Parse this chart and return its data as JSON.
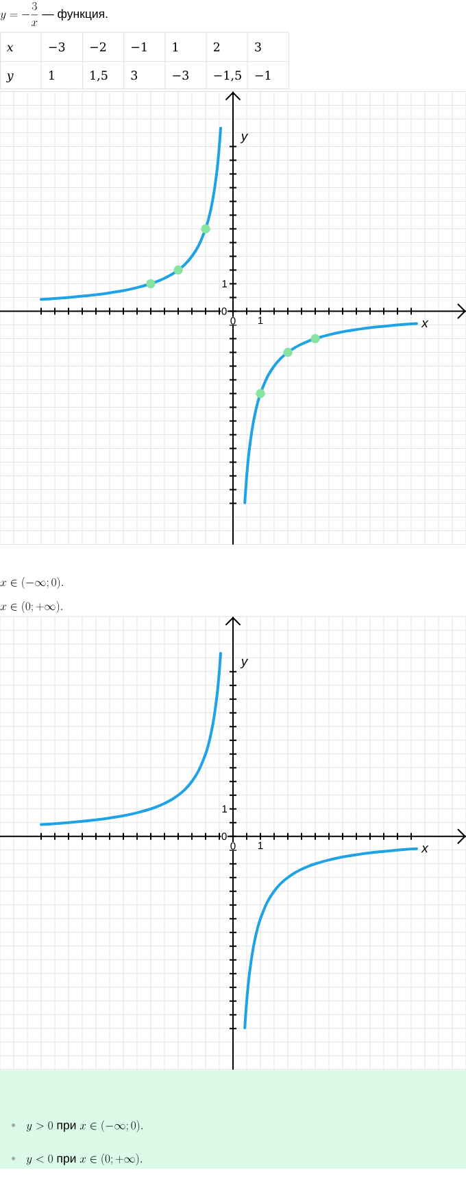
{
  "chart_data": [
    {
      "type": "other",
      "title": "y=-\\frac{3}{x}\\text{ — функция.}",
      "annotations": [
        "x",
        "−3",
        "−2",
        "−1",
        "1",
        "2",
        "3",
        "y",
        "1",
        "1,5",
        "3",
        "−3",
        "−1,5",
        "−1"
      ]
    },
    {
      "type": "line",
      "xlabel": "x",
      "ylabel": "y",
      "xlim": [
        -8.5,
        8.5
      ],
      "ylim": [
        -8.5,
        8
      ],
      "xticks": [
        {
          "value": -7,
          "label": null
        },
        {
          "value": -6.5,
          "label": null
        },
        {
          "value": -6,
          "label": null
        },
        {
          "value": -5.5,
          "label": null
        },
        {
          "value": -5,
          "label": null
        },
        {
          "value": -4.5,
          "label": null
        },
        {
          "value": -4,
          "label": null
        },
        {
          "value": -3.5,
          "label": null
        },
        {
          "value": -3,
          "label": null
        },
        {
          "value": -2.5,
          "label": null
        },
        {
          "value": -2,
          "label": null
        },
        {
          "value": -1.5,
          "label": null
        },
        {
          "value": -1,
          "label": null
        },
        {
          "value": -0.5,
          "label": null
        },
        0,
        {
          "value": 0.5,
          "label": null
        },
        1,
        {
          "value": 1.5,
          "label": null
        },
        {
          "value": 2,
          "label": null
        },
        {
          "value": 2.5,
          "label": null
        },
        {
          "value": 3,
          "label": null
        },
        {
          "value": 3.5,
          "label": null
        },
        {
          "value": 4,
          "label": null
        },
        {
          "value": 4.5,
          "label": null
        },
        {
          "value": 5,
          "label": null
        },
        {
          "value": 5.5,
          "label": null
        },
        {
          "value": 6,
          "label": null
        },
        {
          "value": 6.5,
          "label": null
        }
      ],
      "yticks": [
        {
          "value": -7,
          "label": null
        },
        {
          "value": -6.5,
          "label": null
        },
        {
          "value": -6,
          "label": null
        },
        {
          "value": -5.5,
          "label": null
        },
        {
          "value": -5,
          "label": null
        },
        {
          "value": -4.5,
          "label": null
        },
        {
          "value": -4,
          "label": null
        },
        {
          "value": -3.5,
          "label": null
        },
        {
          "value": -3,
          "label": null
        },
        {
          "value": -2.5,
          "label": null
        },
        {
          "value": -2,
          "label": null
        },
        {
          "value": -1.5,
          "label": null
        },
        {
          "value": -1,
          "label": null
        },
        {
          "value": -0.5,
          "label": null
        },
        0,
        {
          "value": 0.5,
          "label": null
        },
        1,
        {
          "value": 1.5,
          "label": null
        },
        {
          "value": 2,
          "label": null
        },
        {
          "value": 2.5,
          "label": null
        },
        {
          "value": 3,
          "label": null
        },
        {
          "value": 3.5,
          "label": null
        },
        {
          "value": 4,
          "label": null
        },
        {
          "value": 4.5,
          "label": null
        },
        {
          "value": 5,
          "label": null
        },
        {
          "value": 5.5,
          "label": null
        },
        {
          "value": 6,
          "label": null
        }
      ],
      "grid": true,
      "series": [
        {
          "color": "#1fa3e4",
          "x": [
            -7,
            -6.5,
            -6,
            -5.5,
            -5,
            -4.5,
            -4,
            -3.5,
            -3,
            -2.75,
            -2.5,
            -2.25,
            -2,
            -1.75,
            -1.5,
            -1.25,
            -1,
            -0.9,
            -0.8,
            -0.7,
            -0.6,
            -0.55,
            -0.5,
            -0.45
          ],
          "values": [
            0.43,
            0.46,
            0.5,
            0.55,
            0.6,
            0.67,
            0.75,
            0.86,
            1,
            1.09,
            1.2,
            1.33,
            1.5,
            1.71,
            2,
            2.4,
            3,
            3.33,
            3.75,
            4.29,
            5,
            5.45,
            6,
            6.67
          ]
        },
        {
          "color": "#1fa3e4",
          "x": [
            0.43,
            0.45,
            0.5,
            0.55,
            0.6,
            0.7,
            0.8,
            0.9,
            1,
            1.25,
            1.5,
            1.75,
            2,
            2.25,
            2.5,
            2.75,
            3,
            3.5,
            4,
            4.5,
            5,
            5.5,
            6,
            6.5,
            6.7
          ],
          "values": [
            -6.98,
            -6.67,
            -6,
            -5.45,
            -5,
            -4.29,
            -3.75,
            -3.33,
            -3,
            -2.4,
            -2,
            -1.71,
            -1.5,
            -1.33,
            -1.2,
            -1.09,
            -1,
            -0.86,
            -0.75,
            -0.67,
            -0.6,
            -0.55,
            -0.5,
            -0.46,
            -0.45
          ]
        },
        {
          "type": "scatter",
          "color": "#86e3a0",
          "marker": "circle",
          "x": [
            -3,
            -2,
            -1,
            1,
            2,
            3
          ],
          "values": [
            1,
            1.5,
            3,
            -3,
            -1.5,
            -1
          ]
        }
      ],
      "annotations": [
        "x\\in(-\\infty;0).",
        "x\\in(0;+\\infty)."
      ]
    },
    {
      "type": "line",
      "xlabel": "x",
      "ylabel": "y",
      "xlim": [
        -8.5,
        8.5
      ],
      "ylim": [
        -8.5,
        8
      ],
      "xticks": [
        {
          "value": -7,
          "label": null
        },
        {
          "value": -6.5,
          "label": null
        },
        {
          "value": -6,
          "label": null
        },
        {
          "value": -5.5,
          "label": null
        },
        {
          "value": -5,
          "label": null
        },
        {
          "value": -4.5,
          "label": null
        },
        {
          "value": -4,
          "label": null
        },
        {
          "value": -3.5,
          "label": null
        },
        {
          "value": -3,
          "label": null
        },
        {
          "value": -2.5,
          "label": null
        },
        {
          "value": -2,
          "label": null
        },
        {
          "value": -1.5,
          "label": null
        },
        {
          "value": -1,
          "label": null
        },
        {
          "value": -0.5,
          "label": null
        },
        0,
        {
          "value": 0.5,
          "label": null
        },
        1,
        {
          "value": 1.5,
          "label": null
        },
        {
          "value": 2,
          "label": null
        },
        {
          "value": 2.5,
          "label": null
        },
        {
          "value": 3,
          "label": null
        },
        {
          "value": 3.5,
          "label": null
        },
        {
          "value": 4,
          "label": null
        },
        {
          "value": 4.5,
          "label": null
        },
        {
          "value": 5,
          "label": null
        },
        {
          "value": 5.5,
          "label": null
        },
        {
          "value": 6,
          "label": null
        },
        {
          "value": 6.5,
          "label": null
        }
      ],
      "yticks": [
        {
          "value": -7,
          "label": null
        },
        {
          "value": -6.5,
          "label": null
        },
        {
          "value": -6,
          "label": null
        },
        {
          "value": -5.5,
          "label": null
        },
        {
          "value": -5,
          "label": null
        },
        {
          "value": -4.5,
          "label": null
        },
        {
          "value": -4,
          "label": null
        },
        {
          "value": -3.5,
          "label": null
        },
        {
          "value": -3,
          "label": null
        },
        {
          "value": -2.5,
          "label": null
        },
        {
          "value": -2,
          "label": null
        },
        {
          "value": -1.5,
          "label": null
        },
        {
          "value": -1,
          "label": null
        },
        {
          "value": -0.5,
          "label": null
        },
        0,
        {
          "value": 0.5,
          "label": null
        },
        1,
        {
          "value": 1.5,
          "label": null
        },
        {
          "value": 2,
          "label": null
        },
        {
          "value": 2.5,
          "label": null
        },
        {
          "value": 3,
          "label": null
        },
        {
          "value": 3.5,
          "label": null
        },
        {
          "value": 4,
          "label": null
        },
        {
          "value": 4.5,
          "label": null
        },
        {
          "value": 5,
          "label": null
        },
        {
          "value": 5.5,
          "label": null
        },
        {
          "value": 6,
          "label": null
        }
      ],
      "grid": true,
      "series": [
        {
          "color": "#1fa3e4",
          "x": [
            -7,
            -6.5,
            -6,
            -5.5,
            -5,
            -4.5,
            -4,
            -3.5,
            -3,
            -2.75,
            -2.5,
            -2.25,
            -2,
            -1.75,
            -1.5,
            -1.25,
            -1,
            -0.9,
            -0.8,
            -0.7,
            -0.6,
            -0.55,
            -0.5,
            -0.45
          ],
          "values": [
            0.43,
            0.46,
            0.5,
            0.55,
            0.6,
            0.67,
            0.75,
            0.86,
            1,
            1.09,
            1.2,
            1.33,
            1.5,
            1.71,
            2,
            2.4,
            3,
            3.33,
            3.75,
            4.29,
            5,
            5.45,
            6,
            6.67
          ]
        },
        {
          "color": "#1fa3e4",
          "x": [
            0.43,
            0.45,
            0.5,
            0.55,
            0.6,
            0.7,
            0.8,
            0.9,
            1,
            1.25,
            1.5,
            1.75,
            2,
            2.25,
            2.5,
            2.75,
            3,
            3.5,
            4,
            4.5,
            5,
            5.5,
            6,
            6.5,
            6.7
          ],
          "values": [
            -6.98,
            -6.67,
            -6,
            -5.45,
            -5,
            -4.29,
            -3.75,
            -3.33,
            -3,
            -2.4,
            -2,
            -1.71,
            -1.5,
            -1.33,
            -1.2,
            -1.09,
            -1,
            -0.86,
            -0.75,
            -0.67,
            -0.6,
            -0.55,
            -0.5,
            -0.46,
            -0.45
          ]
        }
      ],
      "annotations": [
        "y>0\\text{ при }x\\in(-\\infty;0).",
        "y<0\\text{ при }x\\in(0;+\\infty)."
      ]
    }
  ]
}
